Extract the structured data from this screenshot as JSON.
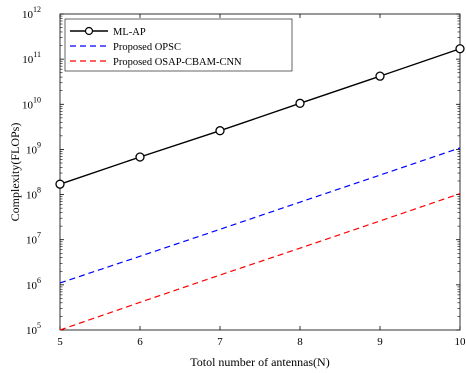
{
  "chart_data": {
    "type": "line",
    "title": "",
    "xlabel": "Totol number of antennas(N)",
    "ylabel": "Complexity(FLOPs)",
    "xlim": [
      5,
      10
    ],
    "ylim": [
      100000,
      1000000000000
    ],
    "yscale": "log",
    "grid": false,
    "legend_position": "top-left",
    "x_ticks": [
      "5",
      "6",
      "7",
      "8",
      "9",
      "10"
    ],
    "y_ticks": [
      {
        "base": "10",
        "exp": "5"
      },
      {
        "base": "10",
        "exp": "6"
      },
      {
        "base": "10",
        "exp": "7"
      },
      {
        "base": "10",
        "exp": "8"
      },
      {
        "base": "10",
        "exp": "9"
      },
      {
        "base": "10",
        "exp": "10"
      },
      {
        "base": "10",
        "exp": "11"
      },
      {
        "base": "10",
        "exp": "12"
      }
    ],
    "x": [
      5,
      6,
      7,
      8,
      9,
      10
    ],
    "series": [
      {
        "name": "ML-AP",
        "color": "#000000",
        "style": "solid",
        "marker": "circle",
        "values": [
          170000000,
          680000000,
          2600000000,
          10500000000,
          42000000000,
          170000000000
        ]
      },
      {
        "name": "Proposed OPSC",
        "color": "#0000ff",
        "style": "dashed",
        "marker": "none",
        "values": [
          1100000,
          4300000,
          17000000,
          68000000,
          270000000,
          1080000000
        ]
      },
      {
        "name": "Proposed OSAP-CBAM-CNN",
        "color": "#ff0000",
        "style": "dashed",
        "marker": "none",
        "values": [
          100000,
          410000,
          1650000,
          6500000,
          26000000,
          105000000
        ]
      }
    ]
  }
}
